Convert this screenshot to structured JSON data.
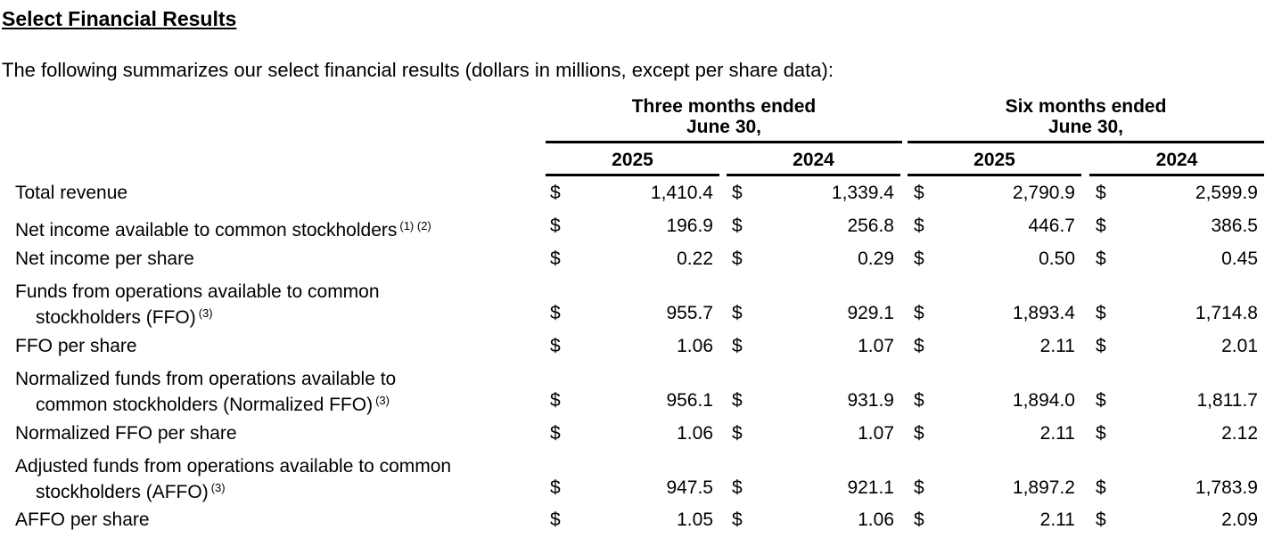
{
  "title": "Select Financial Results",
  "intro": "The following summarizes our select financial results (dollars in millions, except per share data):",
  "header": {
    "three_months": {
      "line1": "Three months ended",
      "line2": "June 30,"
    },
    "six_months": {
      "line1": "Six months ended",
      "line2": "June 30,"
    },
    "years": [
      "2025",
      "2024",
      "2025",
      "2024"
    ]
  },
  "currency_symbol": "$",
  "rows": [
    {
      "label": "Total revenue",
      "label2": "",
      "notes": "",
      "values": [
        "1,410.4",
        "1,339.4",
        "2,790.9",
        "2,599.9"
      ]
    },
    {
      "label": "Net income available to common stockholders",
      "label2": "",
      "notes": "(1) (2)",
      "values": [
        "196.9",
        "256.8",
        "446.7",
        "386.5"
      ]
    },
    {
      "label": "Net income per share",
      "label2": "",
      "notes": "",
      "values": [
        "0.22",
        "0.29",
        "0.50",
        "0.45"
      ]
    },
    {
      "label": "Funds from operations available to common",
      "label2": "stockholders (FFO)",
      "notes": "(3)",
      "values": [
        "955.7",
        "929.1",
        "1,893.4",
        "1,714.8"
      ]
    },
    {
      "label": "FFO per share",
      "label2": "",
      "notes": "",
      "values": [
        "1.06",
        "1.07",
        "2.11",
        "2.01"
      ]
    },
    {
      "label": "Normalized funds from operations available to",
      "label2": "common stockholders (Normalized FFO)",
      "notes": "(3)",
      "values": [
        "956.1",
        "931.9",
        "1,894.0",
        "1,811.7"
      ]
    },
    {
      "label": "Normalized FFO per share",
      "label2": "",
      "notes": "",
      "values": [
        "1.06",
        "1.07",
        "2.11",
        "2.12"
      ]
    },
    {
      "label": "Adjusted funds from operations available to common",
      "label2": "stockholders (AFFO)",
      "notes": "(3)",
      "values": [
        "947.5",
        "921.1",
        "1,897.2",
        "1,783.9"
      ]
    },
    {
      "label": "AFFO per share",
      "label2": "",
      "notes": "",
      "values": [
        "1.05",
        "1.06",
        "2.11",
        "2.09"
      ]
    }
  ]
}
